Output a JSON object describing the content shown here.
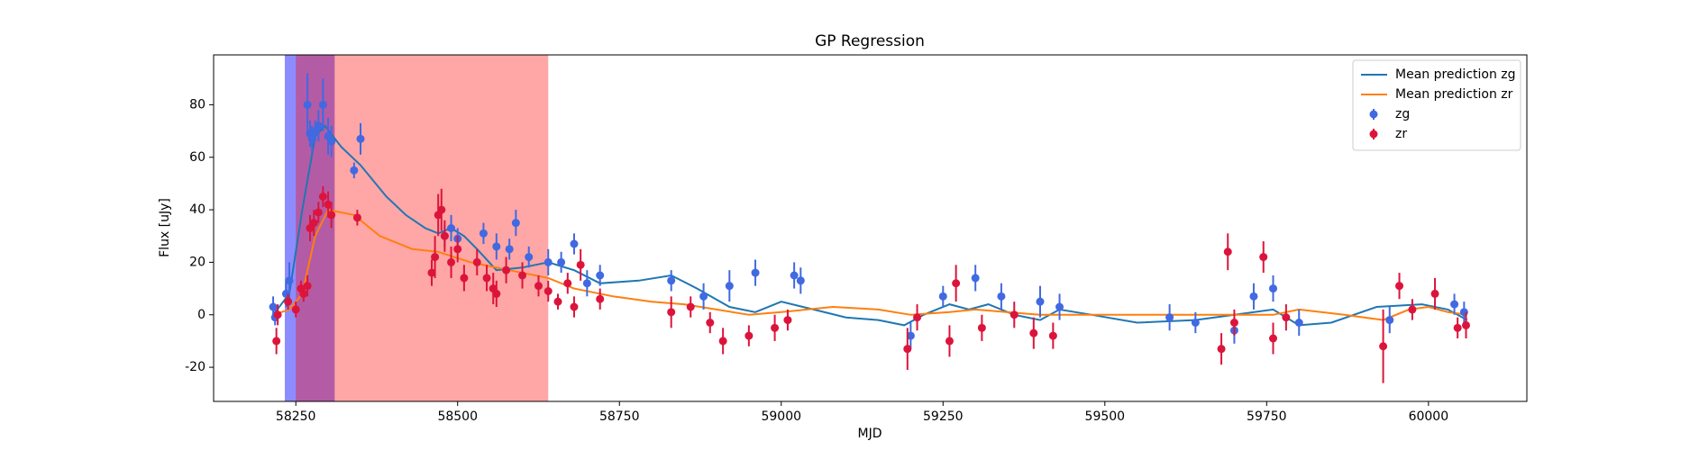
{
  "chart_data": {
    "type": "errorbar",
    "title": "GP Regression",
    "xlabel": "MJD",
    "ylabel": "Flux [uJy]",
    "xlim": [
      58123,
      60152
    ],
    "ylim": [
      -33,
      99
    ],
    "xticks": [
      58250,
      58500,
      58750,
      59000,
      59250,
      59500,
      59750,
      60000
    ],
    "yticks": [
      -20,
      0,
      20,
      40,
      60,
      80
    ],
    "legend": "upper right",
    "spans": [
      {
        "start": 58233,
        "end": 58310,
        "color": "#0000ff"
      },
      {
        "start": 58250,
        "end": 58640,
        "color": "#ff0000"
      }
    ],
    "series": [
      {
        "name": "Mean prediction zg",
        "kind": "line",
        "color": "#1f77b4",
        "x": [
          58215,
          58240,
          58260,
          58280,
          58295,
          58320,
          58350,
          58390,
          58420,
          58450,
          58470,
          58490,
          58510,
          58530,
          58560,
          58600,
          58640,
          58680,
          58720,
          58780,
          58830,
          58870,
          58920,
          58960,
          59000,
          59050,
          59100,
          59150,
          59190,
          59220,
          59260,
          59290,
          59320,
          59360,
          59400,
          59430,
          59480,
          59550,
          59640,
          59700,
          59760,
          59800,
          59850,
          59920,
          59990,
          60030,
          60060
        ],
        "values": [
          0,
          8,
          40,
          68,
          72,
          64,
          57,
          45,
          38,
          33,
          31,
          33,
          30,
          25,
          17,
          18,
          20,
          17,
          12,
          13,
          15,
          10,
          3,
          1,
          5,
          2,
          -1,
          -2,
          -4,
          0,
          4,
          2,
          4,
          0,
          -2,
          2,
          0,
          -3,
          -2,
          0,
          2,
          -4,
          -3,
          3,
          4,
          2,
          -2
        ]
      },
      {
        "name": "Mean prediction zr",
        "kind": "line",
        "color": "#ff7f0e",
        "x": [
          58215,
          58240,
          58260,
          58280,
          58300,
          58340,
          58380,
          58430,
          58470,
          58520,
          58580,
          58640,
          58680,
          58740,
          58800,
          58850,
          58900,
          58950,
          59000,
          59080,
          59150,
          59200,
          59260,
          59300,
          59400,
          59500,
          59600,
          59700,
          59760,
          59800,
          59870,
          59930,
          59970,
          60000,
          60030,
          60060
        ],
        "values": [
          0,
          2,
          8,
          30,
          40,
          38,
          30,
          25,
          24,
          20,
          17,
          14,
          10,
          7,
          5,
          4,
          2,
          0,
          1,
          3,
          2,
          0,
          1,
          2,
          0,
          0,
          0,
          0,
          0,
          2,
          0,
          -2,
          2,
          3,
          1,
          0
        ]
      },
      {
        "name": "zg",
        "kind": "points",
        "color": "#4169e1",
        "x": [
          58215,
          58218,
          58235,
          58240,
          58268,
          58272,
          58275,
          58280,
          58285,
          58292,
          58300,
          58305,
          58340,
          58350,
          58480,
          58490,
          58500,
          58540,
          58560,
          58580,
          58590,
          58610,
          58640,
          58660,
          58680,
          58700,
          58720,
          58830,
          58880,
          58920,
          58960,
          59020,
          59030,
          59200,
          59250,
          59300,
          59340,
          59400,
          59430,
          59600,
          59640,
          59700,
          59730,
          59760,
          59800,
          59940,
          60040,
          60055
        ],
        "values": [
          3,
          -1,
          8,
          13,
          80,
          69,
          67,
          70,
          72,
          80,
          68,
          66,
          55,
          67,
          30,
          33,
          29,
          31,
          26,
          25,
          35,
          22,
          20,
          20,
          27,
          12,
          15,
          13,
          7,
          11,
          16,
          15,
          13,
          -8,
          7,
          14,
          7,
          5,
          3,
          -1,
          -3,
          -6,
          7,
          10,
          -3,
          -2,
          4,
          1
        ],
        "errors": [
          4,
          3,
          5,
          7,
          12,
          5,
          5,
          4,
          6,
          10,
          7,
          6,
          3,
          6,
          4,
          5,
          4,
          4,
          5,
          4,
          5,
          4,
          5,
          4,
          4,
          5,
          4,
          4,
          5,
          6,
          5,
          5,
          5,
          5,
          4,
          5,
          5,
          6,
          5,
          5,
          4,
          5,
          5,
          5,
          5,
          5,
          4,
          4
        ]
      },
      {
        "name": "zr",
        "kind": "points",
        "color": "#dc143c",
        "x": [
          58220,
          58222,
          58238,
          58250,
          58258,
          58262,
          58268,
          58272,
          58278,
          58285,
          58292,
          58300,
          58305,
          58345,
          58460,
          58465,
          58470,
          58475,
          58480,
          58490,
          58500,
          58510,
          58530,
          58545,
          58555,
          58560,
          58575,
          58600,
          58625,
          58640,
          58655,
          58670,
          58680,
          58690,
          58720,
          58830,
          58860,
          58890,
          58910,
          58950,
          58990,
          59010,
          59195,
          59210,
          59260,
          59270,
          59310,
          59360,
          59390,
          59420,
          59680,
          59690,
          59700,
          59745,
          59760,
          59780,
          59930,
          59955,
          59975,
          60010,
          60045,
          60058
        ],
        "values": [
          -10,
          0,
          5,
          2,
          10,
          8,
          11,
          33,
          35,
          39,
          45,
          42,
          38,
          37,
          16,
          22,
          38,
          40,
          30,
          20,
          25,
          14,
          20,
          14,
          10,
          8,
          17,
          15,
          11,
          9,
          5,
          12,
          3,
          19,
          6,
          1,
          3,
          -3,
          -10,
          -8,
          -5,
          -2,
          -13,
          -1,
          -10,
          12,
          -5,
          0,
          -7,
          -8,
          -13,
          24,
          -3,
          22,
          -9,
          -1,
          -12,
          11,
          2,
          8,
          -5,
          -4
        ],
        "errors": [
          5,
          4,
          3,
          3,
          3,
          3,
          4,
          5,
          5,
          4,
          4,
          5,
          5,
          3,
          5,
          8,
          8,
          8,
          6,
          6,
          5,
          5,
          5,
          5,
          6,
          5,
          5,
          5,
          4,
          4,
          3,
          4,
          4,
          6,
          4,
          6,
          4,
          4,
          5,
          4,
          5,
          4,
          8,
          5,
          6,
          7,
          5,
          5,
          6,
          5,
          6,
          7,
          5,
          6,
          6,
          5,
          14,
          5,
          4,
          6,
          4,
          5
        ]
      }
    ]
  }
}
